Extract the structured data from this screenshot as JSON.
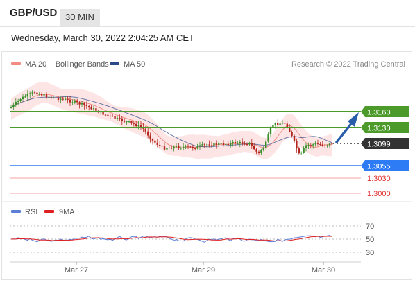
{
  "header": {
    "symbol": "GBP/USD",
    "timeframe": "30 MIN"
  },
  "datetime": "Wednesday, March 30, 2022 2:04:25 AM CET",
  "legend": {
    "items": [
      {
        "label": "MA 20 + Bollinger Bands",
        "color": "#f28b82"
      },
      {
        "label": "MA 50",
        "color": "#2b4a8a"
      }
    ],
    "credit": "Research © 2022 Trading Central"
  },
  "levels": [
    {
      "price": "1.3160",
      "kind": "resistance",
      "color": "#4c9a2a",
      "text_color": "#ffffff"
    },
    {
      "price": "1.3130",
      "kind": "resistance",
      "color": "#4c9a2a",
      "text_color": "#ffffff"
    },
    {
      "price": "1.3099",
      "kind": "current",
      "color": "#333333",
      "text_color": "#ffffff"
    },
    {
      "price": "1.3055",
      "kind": "pivot",
      "color": "#2e7bf6",
      "text_color": "#ffffff"
    },
    {
      "price": "1.3030",
      "kind": "support",
      "color": "#e03030",
      "text_color": "#e03030"
    },
    {
      "price": "1.3000",
      "kind": "support",
      "color": "#e03030",
      "text_color": "#e03030"
    }
  ],
  "rsi": {
    "legend": [
      {
        "label": "RSI",
        "color": "#5b7fd6"
      },
      {
        "label": "9MA",
        "color": "#e02020"
      }
    ],
    "levels": [
      "70",
      "50",
      "30"
    ]
  },
  "xaxis": {
    "labels": [
      "Mar 27",
      "Mar 29",
      "Mar 30"
    ]
  }
}
